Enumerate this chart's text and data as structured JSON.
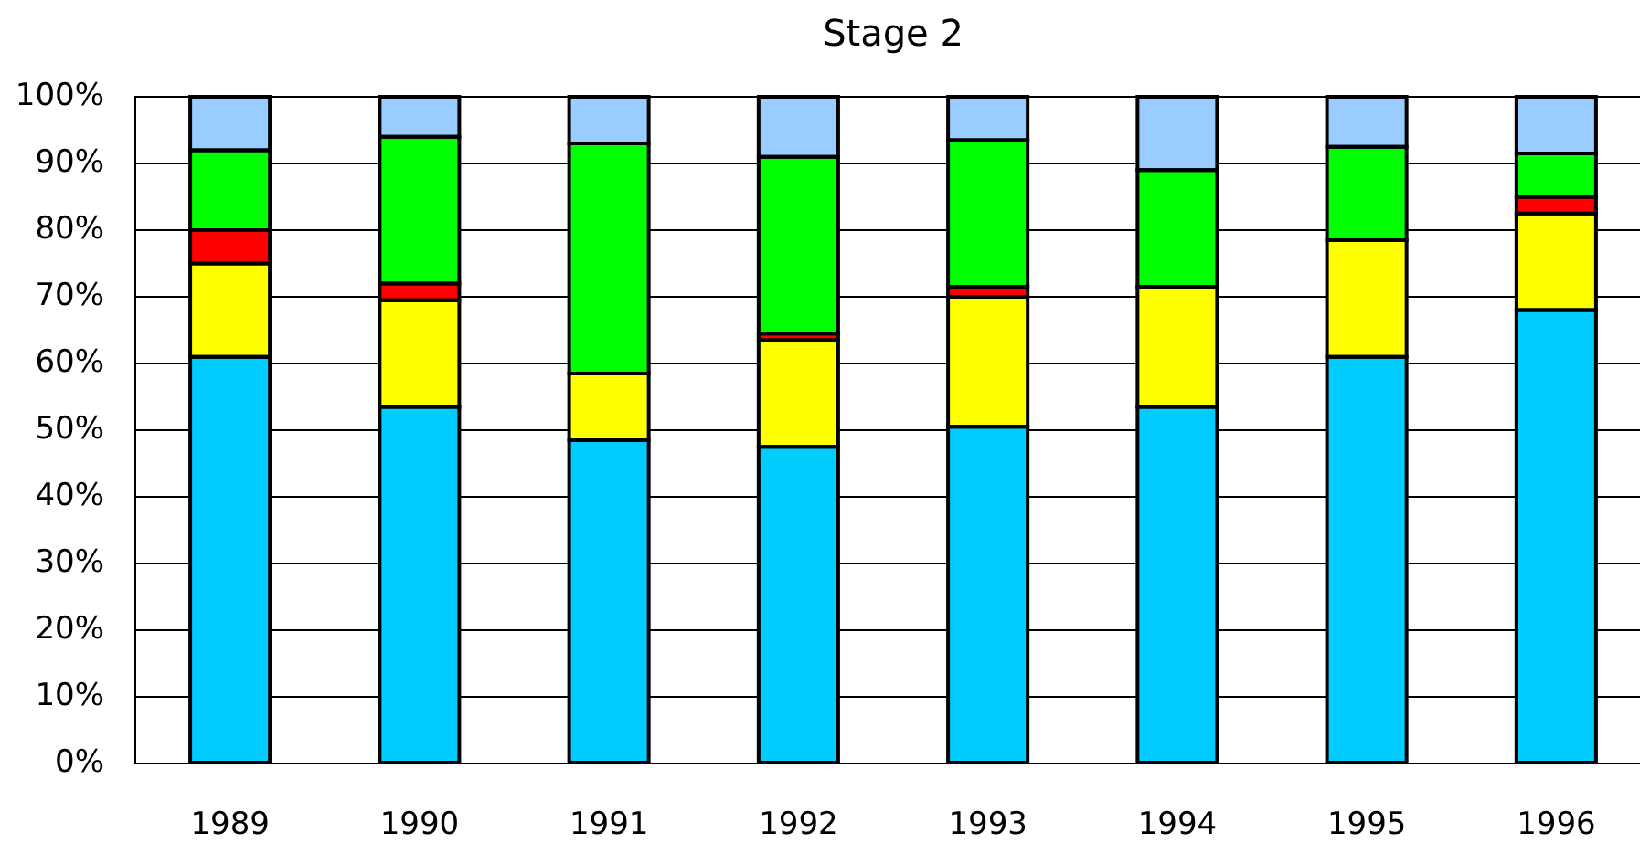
{
  "chart_data": {
    "type": "bar",
    "title": "Stage 2",
    "stacked": true,
    "grid": "y",
    "categories": [
      "1989",
      "1990",
      "1991",
      "1992",
      "1993",
      "1994",
      "1995",
      "1996"
    ],
    "series": [
      {
        "color": "#00ccff",
        "values": [
          61,
          53.5,
          48.5,
          47.5,
          50.5,
          53.5,
          61,
          68
        ]
      },
      {
        "color": "#ffff00",
        "values": [
          14,
          16,
          10,
          16,
          19.5,
          18,
          17.5,
          14.5
        ]
      },
      {
        "color": "#ff0000",
        "values": [
          5,
          2.5,
          null,
          1,
          1.5,
          null,
          null,
          2.5
        ]
      },
      {
        "color": "#00ff00",
        "values": [
          12,
          22,
          34.5,
          26.5,
          22,
          17.5,
          14,
          6.5
        ]
      },
      {
        "color": "#99ccff",
        "values": [
          8,
          6,
          7,
          9,
          6.5,
          11,
          7.5,
          8.5
        ]
      }
    ],
    "ylim": [
      0,
      100
    ],
    "yticks": [
      {
        "value": 0,
        "label": "0%"
      },
      {
        "value": 10,
        "label": "10%"
      },
      {
        "value": 20,
        "label": "20%"
      },
      {
        "value": 30,
        "label": "30%"
      },
      {
        "value": 40,
        "label": "40%"
      },
      {
        "value": 50,
        "label": "50%"
      },
      {
        "value": 60,
        "label": "60%"
      },
      {
        "value": 70,
        "label": "70%"
      },
      {
        "value": 80,
        "label": "80%"
      },
      {
        "value": 90,
        "label": "90%"
      },
      {
        "value": 100,
        "label": "100%"
      }
    ]
  }
}
